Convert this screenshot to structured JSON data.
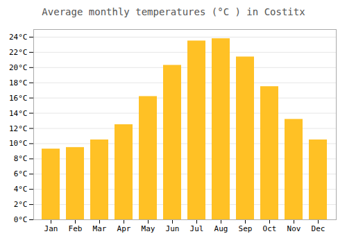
{
  "chart_data": {
    "type": "bar",
    "title": "Average monthly temperatures (°C ) in Costitx",
    "categories": [
      "Jan",
      "Feb",
      "Mar",
      "Apr",
      "May",
      "Jun",
      "Jul",
      "Aug",
      "Sep",
      "Oct",
      "Nov",
      "Dec"
    ],
    "values": [
      9.3,
      9.5,
      10.5,
      12.5,
      16.2,
      20.3,
      23.5,
      23.8,
      21.4,
      17.5,
      13.2,
      10.5
    ],
    "color": "#FFC125",
    "ylim": [
      0,
      25
    ],
    "yticks": [
      {
        "value": 0,
        "label": "0°C"
      },
      {
        "value": 2,
        "label": "2°C"
      },
      {
        "value": 4,
        "label": "4°C"
      },
      {
        "value": 6,
        "label": "6°C"
      },
      {
        "value": 8,
        "label": "8°C"
      },
      {
        "value": 10,
        "label": "10°C"
      },
      {
        "value": 12,
        "label": "12°C"
      },
      {
        "value": 14,
        "label": "14°C"
      },
      {
        "value": 16,
        "label": "16°C"
      },
      {
        "value": 18,
        "label": "18°C"
      },
      {
        "value": 20,
        "label": "20°C"
      },
      {
        "value": 22,
        "label": "22°C"
      },
      {
        "value": 24,
        "label": "24°C"
      }
    ],
    "grid": true
  }
}
